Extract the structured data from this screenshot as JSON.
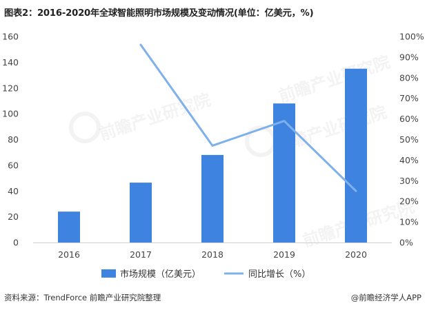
{
  "title": "图表2：2016-2020年全球智能照明市场规模及变动情况(单位：亿美元，%)",
  "footer": {
    "source": "资料来源：TrendForce 前瞻产业研究院整理",
    "brand": "@前瞻经济学人APP"
  },
  "watermark_text": "前瞻产业研究院",
  "chart_data": {
    "type": "bar",
    "categories": [
      "2016",
      "2017",
      "2018",
      "2019",
      "2020"
    ],
    "series": [
      {
        "name": "市场规模（亿美元）",
        "type": "bar",
        "axis": "left",
        "color": "#3f83e0",
        "values": [
          24,
          46.5,
          68,
          108,
          135
        ]
      },
      {
        "name": "同比增长（%）",
        "type": "line",
        "axis": "right",
        "color": "#7eb0ea",
        "values": [
          null,
          96,
          47,
          59,
          25
        ]
      }
    ],
    "y_left": {
      "min": 0,
      "max": 160,
      "ticks": [
        "0",
        "20",
        "40",
        "60",
        "80",
        "100",
        "120",
        "140",
        "160"
      ]
    },
    "y_right": {
      "min": 0,
      "max": 100,
      "ticks": [
        "0%",
        "10%",
        "20%",
        "30%",
        "40%",
        "50%",
        "60%",
        "70%",
        "80%",
        "90%",
        "100%"
      ]
    },
    "grid": false,
    "legend": "bottom"
  }
}
